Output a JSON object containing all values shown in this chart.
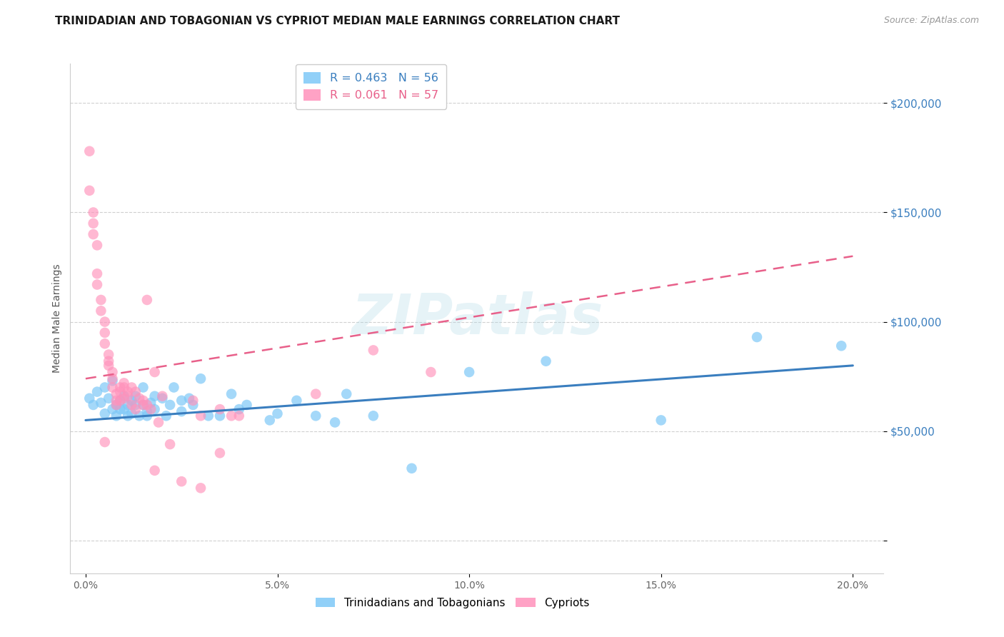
{
  "title": "TRINIDADIAN AND TOBAGONIAN VS CYPRIOT MEDIAN MALE EARNINGS CORRELATION CHART",
  "source": "Source: ZipAtlas.com",
  "xlabel_ticks": [
    "0.0%",
    "5.0%",
    "10.0%",
    "15.0%",
    "20.0%"
  ],
  "xlabel_vals": [
    0.0,
    0.05,
    0.1,
    0.15,
    0.2
  ],
  "ylabel": "Median Male Earnings",
  "ylabel_ticks": [
    0,
    50000,
    100000,
    150000,
    200000
  ],
  "ylabel_labels": [
    "",
    "$50,000",
    "$100,000",
    "$150,000",
    "$200,000"
  ],
  "xlim": [
    -0.004,
    0.208
  ],
  "ylim": [
    -15000,
    218000
  ],
  "watermark": "ZIPatlas",
  "legend_top": [
    {
      "label": "R = 0.463   N = 56",
      "color": "#5b9bd5"
    },
    {
      "label": "R = 0.061   N = 57",
      "color": "#f768a1"
    }
  ],
  "legend_labels": [
    "Trinidadians and Tobagonians",
    "Cypriots"
  ],
  "blue_color": "#7ec8f7",
  "pink_color": "#ff92bb",
  "blue_line_color": "#3a7ebf",
  "pink_line_color": "#e8608a",
  "blue_scatter": [
    [
      0.001,
      65000
    ],
    [
      0.002,
      62000
    ],
    [
      0.003,
      68000
    ],
    [
      0.004,
      63000
    ],
    [
      0.005,
      58000
    ],
    [
      0.005,
      70000
    ],
    [
      0.006,
      65000
    ],
    [
      0.007,
      60000
    ],
    [
      0.007,
      73000
    ],
    [
      0.008,
      62000
    ],
    [
      0.008,
      57000
    ],
    [
      0.009,
      64000
    ],
    [
      0.009,
      60000
    ],
    [
      0.01,
      66000
    ],
    [
      0.01,
      60000
    ],
    [
      0.011,
      62000
    ],
    [
      0.011,
      57000
    ],
    [
      0.012,
      64000
    ],
    [
      0.012,
      58000
    ],
    [
      0.013,
      66000
    ],
    [
      0.013,
      62000
    ],
    [
      0.014,
      57000
    ],
    [
      0.015,
      70000
    ],
    [
      0.015,
      62000
    ],
    [
      0.016,
      59000
    ],
    [
      0.016,
      57000
    ],
    [
      0.017,
      63000
    ],
    [
      0.018,
      60000
    ],
    [
      0.018,
      66000
    ],
    [
      0.02,
      65000
    ],
    [
      0.021,
      57000
    ],
    [
      0.022,
      62000
    ],
    [
      0.023,
      70000
    ],
    [
      0.025,
      59000
    ],
    [
      0.025,
      64000
    ],
    [
      0.027,
      65000
    ],
    [
      0.028,
      62000
    ],
    [
      0.03,
      74000
    ],
    [
      0.032,
      57000
    ],
    [
      0.035,
      57000
    ],
    [
      0.038,
      67000
    ],
    [
      0.04,
      60000
    ],
    [
      0.042,
      62000
    ],
    [
      0.048,
      55000
    ],
    [
      0.05,
      58000
    ],
    [
      0.055,
      64000
    ],
    [
      0.06,
      57000
    ],
    [
      0.065,
      54000
    ],
    [
      0.068,
      67000
    ],
    [
      0.075,
      57000
    ],
    [
      0.085,
      33000
    ],
    [
      0.1,
      77000
    ],
    [
      0.12,
      82000
    ],
    [
      0.15,
      55000
    ],
    [
      0.175,
      93000
    ],
    [
      0.197,
      89000
    ]
  ],
  "pink_scatter": [
    [
      0.001,
      178000
    ],
    [
      0.001,
      160000
    ],
    [
      0.002,
      150000
    ],
    [
      0.002,
      145000
    ],
    [
      0.002,
      140000
    ],
    [
      0.003,
      135000
    ],
    [
      0.003,
      122000
    ],
    [
      0.003,
      117000
    ],
    [
      0.004,
      110000
    ],
    [
      0.004,
      105000
    ],
    [
      0.005,
      100000
    ],
    [
      0.005,
      95000
    ],
    [
      0.005,
      90000
    ],
    [
      0.006,
      85000
    ],
    [
      0.006,
      82000
    ],
    [
      0.006,
      80000
    ],
    [
      0.007,
      77000
    ],
    [
      0.007,
      74000
    ],
    [
      0.007,
      70000
    ],
    [
      0.008,
      67000
    ],
    [
      0.008,
      64000
    ],
    [
      0.008,
      62000
    ],
    [
      0.009,
      70000
    ],
    [
      0.009,
      64000
    ],
    [
      0.009,
      68000
    ],
    [
      0.01,
      72000
    ],
    [
      0.01,
      70000
    ],
    [
      0.01,
      65000
    ],
    [
      0.011,
      68000
    ],
    [
      0.011,
      66000
    ],
    [
      0.012,
      70000
    ],
    [
      0.012,
      62000
    ],
    [
      0.013,
      68000
    ],
    [
      0.013,
      60000
    ],
    [
      0.014,
      65000
    ],
    [
      0.015,
      64000
    ],
    [
      0.015,
      62000
    ],
    [
      0.016,
      110000
    ],
    [
      0.016,
      62000
    ],
    [
      0.017,
      60000
    ],
    [
      0.018,
      77000
    ],
    [
      0.019,
      54000
    ],
    [
      0.02,
      66000
    ],
    [
      0.022,
      44000
    ],
    [
      0.025,
      27000
    ],
    [
      0.028,
      64000
    ],
    [
      0.03,
      57000
    ],
    [
      0.035,
      60000
    ],
    [
      0.038,
      57000
    ],
    [
      0.04,
      57000
    ],
    [
      0.005,
      45000
    ],
    [
      0.018,
      32000
    ],
    [
      0.03,
      24000
    ],
    [
      0.06,
      67000
    ],
    [
      0.035,
      40000
    ],
    [
      0.075,
      87000
    ],
    [
      0.09,
      77000
    ]
  ],
  "blue_trend_x": [
    0.0,
    0.2
  ],
  "blue_trend_y": [
    55000,
    80000
  ],
  "pink_trend_x": [
    0.0,
    0.2
  ],
  "pink_trend_y": [
    74000,
    130000
  ],
  "grid_color": "#d0d0d0",
  "background_color": "#ffffff",
  "title_fontsize": 11,
  "axis_label_fontsize": 10,
  "tick_fontsize": 10,
  "source_fontsize": 9
}
